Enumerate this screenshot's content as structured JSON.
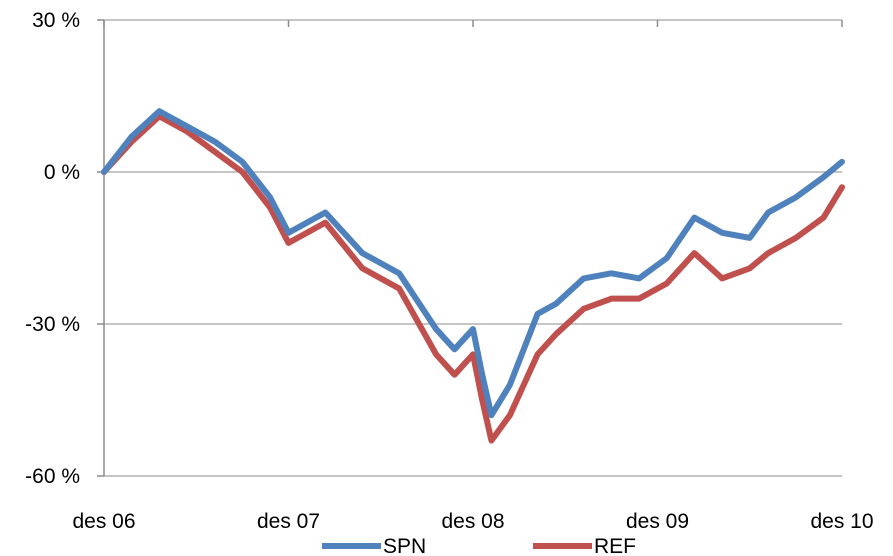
{
  "chart_data": {
    "type": "line",
    "title": "",
    "xlabel": "",
    "ylabel": "",
    "x_ticks": [
      "des 06",
      "des 07",
      "des 08",
      "des 09",
      "des 10"
    ],
    "y_ticks": [
      "30 %",
      "0 %",
      "-30 %",
      "-60 %"
    ],
    "ylim": [
      -60,
      30
    ],
    "grid": true,
    "legend_position": "bottom",
    "series": [
      {
        "name": "SPN",
        "color": "#4F81BD",
        "x": [
          0,
          0.15,
          0.3,
          0.45,
          0.6,
          0.75,
          0.9,
          1.0,
          1.2,
          1.4,
          1.6,
          1.8,
          1.9,
          2.0,
          2.05,
          2.1,
          2.2,
          2.35,
          2.45,
          2.6,
          2.75,
          2.9,
          3.05,
          3.2,
          3.35,
          3.5,
          3.6,
          3.75,
          3.9,
          4.0
        ],
        "values": [
          0,
          7,
          12,
          9,
          6,
          2,
          -5,
          -12,
          -8,
          -16,
          -20,
          -31,
          -35,
          -31,
          -40,
          -48,
          -42,
          -28,
          -26,
          -21,
          -20,
          -21,
          -17,
          -9,
          -12,
          -13,
          -8,
          -5,
          -1,
          2
        ]
      },
      {
        "name": "REF",
        "color": "#C0504D",
        "x": [
          0,
          0.15,
          0.3,
          0.45,
          0.6,
          0.75,
          0.9,
          1.0,
          1.2,
          1.4,
          1.6,
          1.8,
          1.9,
          2.0,
          2.05,
          2.1,
          2.2,
          2.35,
          2.45,
          2.6,
          2.75,
          2.9,
          3.05,
          3.2,
          3.35,
          3.5,
          3.6,
          3.75,
          3.9,
          4.0
        ],
        "values": [
          0,
          6,
          11,
          8,
          4,
          0,
          -7,
          -14,
          -10,
          -19,
          -23,
          -36,
          -40,
          -36,
          -45,
          -53,
          -48,
          -36,
          -32,
          -27,
          -25,
          -25,
          -22,
          -16,
          -21,
          -19,
          -16,
          -13,
          -9,
          -3
        ]
      }
    ]
  }
}
